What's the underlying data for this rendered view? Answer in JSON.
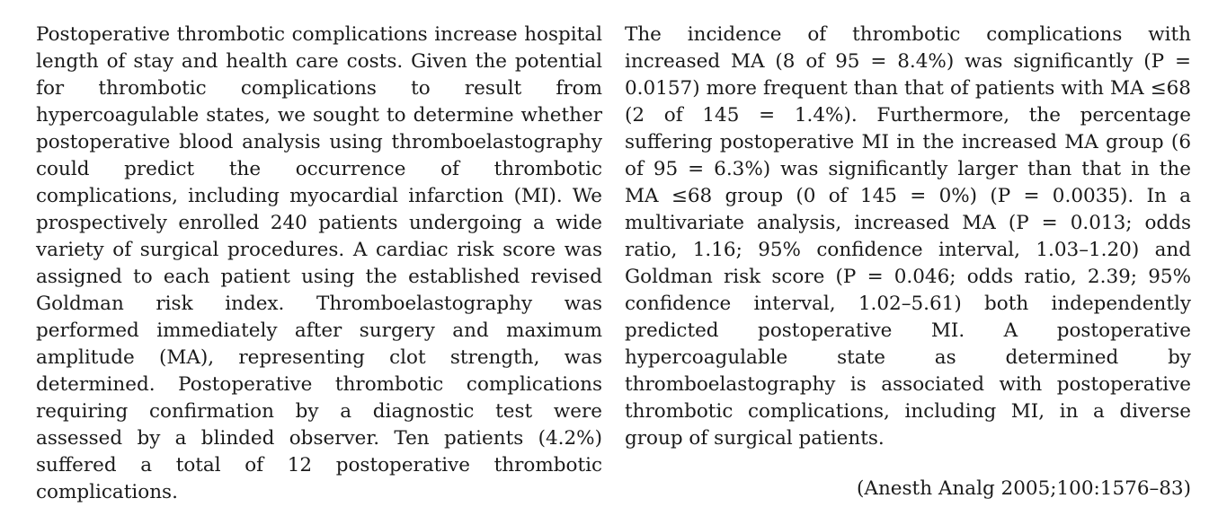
{
  "abstract": {
    "left_column_text": "Postoperative thrombotic complications increase hospital length of stay and health care costs. Given the potential for thrombotic complications to result from hypercoagulable states, we sought to determine whether postoperative blood analysis using thromboelastography could predict the occurrence of thrombotic complications, including myocardial infarction (MI). We prospectively enrolled 240 patients undergoing a wide variety of surgical procedures. A cardiac risk score was assigned to each patient using the established revised Goldman risk index. Thromboelastography was performed immediately after surgery and maximum amplitude (MA), representing clot strength, was determined. Postoperative thrombotic complications requiring confirmation by a diagnostic test were assessed by a blinded observer. Ten patients (4.2%) suffered a total of 12 postoperative thrombotic complications.",
    "right_column_text": "The incidence of thrombotic complications with increased MA (8 of 95 = 8.4%) was significantly (P = 0.0157) more frequent than that of patients with MA ≤68 (2 of 145 = 1.4%). Furthermore, the percentage suffering postoperative MI in the increased MA group (6 of 95 = 6.3%) was significantly larger than that in the MA ≤68 group (0 of 145 = 0%) (P = 0.0035). In a multivariate analysis, increased MA (P = 0.013; odds ratio, 1.16; 95% confidence interval, 1.03–1.20) and Goldman risk score (P = 0.046; odds ratio, 2.39; 95% confidence interval, 1.02–5.61) both independently predicted postoperative MI. A postoperative hypercoagulable state as determined by thromboelastography is associated with postoperative thrombotic complications, including MI, in a diverse group of surgical patients.",
    "citation": "(Anesth Analg 2005;100:1576–83)"
  }
}
